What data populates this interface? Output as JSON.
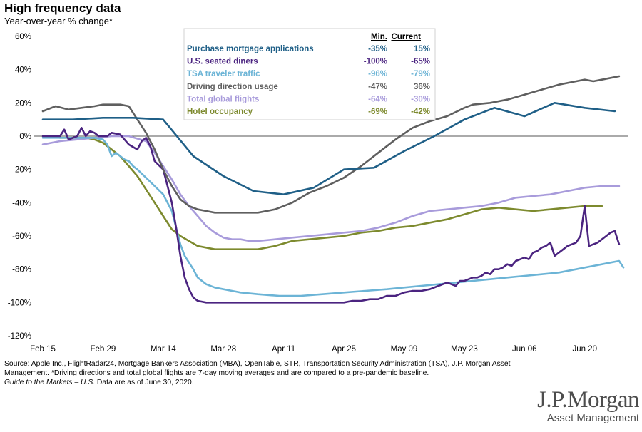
{
  "header": {
    "title": "High frequency data",
    "subtitle": "Year-over-year % change*"
  },
  "chart_data": {
    "type": "line",
    "title": "High frequency data",
    "ylabel": "Year-over-year % change*",
    "ylim": [
      -120,
      60
    ],
    "yticks": [
      60,
      40,
      20,
      0,
      -20,
      -40,
      -60,
      -80,
      -100,
      -120
    ],
    "yticklabels": [
      "60%",
      "40%",
      "20%",
      "0%",
      "-20%",
      "-40%",
      "-60%",
      "-80%",
      "-100%",
      "-120%"
    ],
    "xlim": [
      0,
      136
    ],
    "xticks": [
      0,
      14,
      28,
      42,
      56,
      70,
      84,
      98,
      112,
      126
    ],
    "xticklabels": [
      "Feb 15",
      "Feb 29",
      "Mar 14",
      "Mar 28",
      "Apr 11",
      "Apr 25",
      "May 09",
      "May 23",
      "Jun 06",
      "Jun 20"
    ],
    "legend": {
      "position": "top-center",
      "min_header": "Min.",
      "current_header": "Current"
    },
    "series": [
      {
        "name": "Purchase mortgage applications",
        "color": "#1f5f87",
        "min": "-35%",
        "current": "15%",
        "x": [
          0,
          7,
          14,
          21,
          28,
          35,
          42,
          49,
          56,
          63,
          70,
          77,
          84,
          91,
          98,
          105,
          112,
          119,
          126,
          133
        ],
        "values": [
          10,
          10,
          11,
          11,
          10,
          -12,
          -24,
          -33,
          -35,
          -31,
          -20,
          -19,
          -9,
          0,
          10,
          17,
          12,
          20,
          17,
          15
        ]
      },
      {
        "name": "U.S. seated diners",
        "color": "#4b2480",
        "min": "-100%",
        "current": "-65%",
        "x": [
          0,
          2,
          4,
          5,
          6,
          8,
          9,
          10,
          11,
          12,
          13,
          15,
          16,
          18,
          20,
          22,
          23,
          24,
          25,
          26,
          28,
          29,
          30,
          31,
          32,
          33,
          34,
          35,
          36,
          38,
          40,
          42,
          45,
          50,
          55,
          60,
          65,
          70,
          72,
          74,
          76,
          78,
          80,
          82,
          84,
          86,
          88,
          90,
          92,
          94,
          95,
          96,
          97,
          98,
          99,
          100,
          101,
          102,
          103,
          104,
          105,
          106,
          107,
          108,
          109,
          110,
          111,
          112,
          113,
          114,
          115,
          116,
          117,
          118,
          119,
          120,
          121,
          122,
          123,
          124,
          125,
          126,
          127,
          128,
          129,
          130,
          131,
          132,
          133,
          134
        ],
        "values": [
          0,
          0,
          0,
          4,
          -2,
          0,
          5,
          0,
          3,
          2,
          0,
          0,
          2,
          1,
          -5,
          -8,
          -3,
          -1,
          -6,
          -15,
          -20,
          -30,
          -40,
          -55,
          -72,
          -85,
          -92,
          -97,
          -99,
          -100,
          -100,
          -100,
          -100,
          -100,
          -100,
          -100,
          -100,
          -100,
          -99,
          -99,
          -98,
          -98,
          -96,
          -96,
          -94,
          -93,
          -93,
          -92,
          -90,
          -88,
          -89,
          -90,
          -87,
          -87,
          -86,
          -85,
          -85,
          -84,
          -82,
          -83,
          -80,
          -80,
          -79,
          -77,
          -78,
          -75,
          -74,
          -73,
          -74,
          -70,
          -69,
          -67,
          -66,
          -64,
          -72,
          -70,
          -68,
          -66,
          -65,
          -64,
          -60,
          -42,
          -66,
          -65,
          -64,
          -62,
          -60,
          -58,
          -57,
          -65
        ]
      },
      {
        "name": "TSA traveler traffic",
        "color": "#6cb4d6",
        "min": "-96%",
        "current": "-79%",
        "x": [
          0,
          4,
          8,
          12,
          14,
          15,
          16,
          17,
          18,
          19,
          20,
          21,
          22,
          24,
          26,
          28,
          30,
          31,
          32,
          33,
          34,
          35,
          36,
          38,
          40,
          42,
          44,
          46,
          50,
          55,
          60,
          65,
          70,
          75,
          80,
          84,
          88,
          92,
          96,
          100,
          104,
          108,
          112,
          116,
          120,
          124,
          126,
          128,
          130,
          132,
          134,
          135
        ],
        "values": [
          -1,
          -1,
          -1,
          -1,
          -2,
          -5,
          -12,
          -10,
          -12,
          -14,
          -15,
          -18,
          -20,
          -25,
          -30,
          -35,
          -45,
          -55,
          -65,
          -72,
          -76,
          -80,
          -85,
          -89,
          -91,
          -92,
          -93,
          -94,
          -95,
          -96,
          -96,
          -95,
          -94,
          -93,
          -92,
          -91,
          -90,
          -89,
          -88,
          -87,
          -86,
          -85,
          -84,
          -83,
          -82,
          -80,
          -79,
          -78,
          -77,
          -76,
          -75,
          -79
        ]
      },
      {
        "name": "Driving direction usage",
        "color": "#5f5f5f",
        "min": "-47%",
        "current": "36%",
        "x": [
          0,
          3,
          6,
          9,
          12,
          14,
          16,
          18,
          20,
          22,
          24,
          26,
          28,
          30,
          32,
          34,
          36,
          38,
          40,
          42,
          46,
          50,
          54,
          58,
          62,
          66,
          70,
          74,
          78,
          82,
          86,
          90,
          94,
          98,
          100,
          104,
          108,
          112,
          116,
          120,
          124,
          126,
          128,
          130,
          132,
          134
        ],
        "values": [
          15,
          18,
          16,
          17,
          18,
          19,
          19,
          19,
          18,
          10,
          2,
          -8,
          -20,
          -30,
          -38,
          -42,
          -44,
          -45,
          -46,
          -46,
          -46,
          -46,
          -44,
          -40,
          -34,
          -30,
          -25,
          -18,
          -10,
          -2,
          5,
          9,
          12,
          17,
          19,
          20,
          22,
          25,
          28,
          31,
          33,
          34,
          33,
          34,
          35,
          36
        ]
      },
      {
        "name": "Total global flights",
        "color": "#a89bdb",
        "min": "-64%",
        "current": "-30%",
        "x": [
          0,
          4,
          8,
          12,
          16,
          20,
          24,
          26,
          28,
          30,
          32,
          34,
          36,
          38,
          40,
          42,
          44,
          46,
          48,
          50,
          54,
          58,
          62,
          66,
          70,
          74,
          78,
          82,
          86,
          90,
          94,
          98,
          102,
          106,
          110,
          114,
          118,
          122,
          126,
          130,
          134
        ],
        "values": [
          -5,
          -3,
          -2,
          -1,
          0,
          0,
          -3,
          -10,
          -18,
          -26,
          -35,
          -42,
          -48,
          -54,
          -58,
          -61,
          -62,
          -62,
          -63,
          -63,
          -62,
          -61,
          -60,
          -59,
          -58,
          -57,
          -55,
          -52,
          -48,
          -45,
          -44,
          -43,
          -42,
          -40,
          -37,
          -36,
          -35,
          -33,
          -31,
          -30,
          -30
        ]
      },
      {
        "name": "Hotel occupancy",
        "color": "#7d8a2e",
        "min": "-69%",
        "current": "-42%",
        "x": [
          0,
          4,
          8,
          10,
          12,
          14,
          16,
          18,
          20,
          22,
          24,
          26,
          28,
          30,
          32,
          34,
          36,
          38,
          40,
          42,
          46,
          50,
          54,
          58,
          62,
          66,
          70,
          74,
          78,
          82,
          86,
          90,
          94,
          98,
          102,
          106,
          110,
          114,
          118,
          122,
          126,
          130
        ],
        "values": [
          0,
          -1,
          -1,
          -1,
          -2,
          -4,
          -8,
          -12,
          -18,
          -24,
          -32,
          -40,
          -48,
          -56,
          -60,
          -63,
          -66,
          -67,
          -68,
          -68,
          -68,
          -68,
          -66,
          -63,
          -62,
          -61,
          -60,
          -58,
          -57,
          -55,
          -54,
          -52,
          -50,
          -47,
          -44,
          -43,
          -44,
          -45,
          -44,
          -43,
          -42,
          -42
        ]
      }
    ]
  },
  "footer": {
    "source": "Source: Apple Inc., FlightRadar24, Mortgage Bankers Association (MBA), OpenTable, STR, Transportation Security Administration (TSA), J.P. Morgan Asset Management. *Driving directions and total global flights are 7-day moving averages and are compared to a pre-pandemic baseline.",
    "guide": "Guide to the Markets – U.S.",
    "data_note": " Data are as of June 30, 2020."
  },
  "logo": {
    "name": "J.P.Morgan",
    "sub": "Asset Management"
  }
}
